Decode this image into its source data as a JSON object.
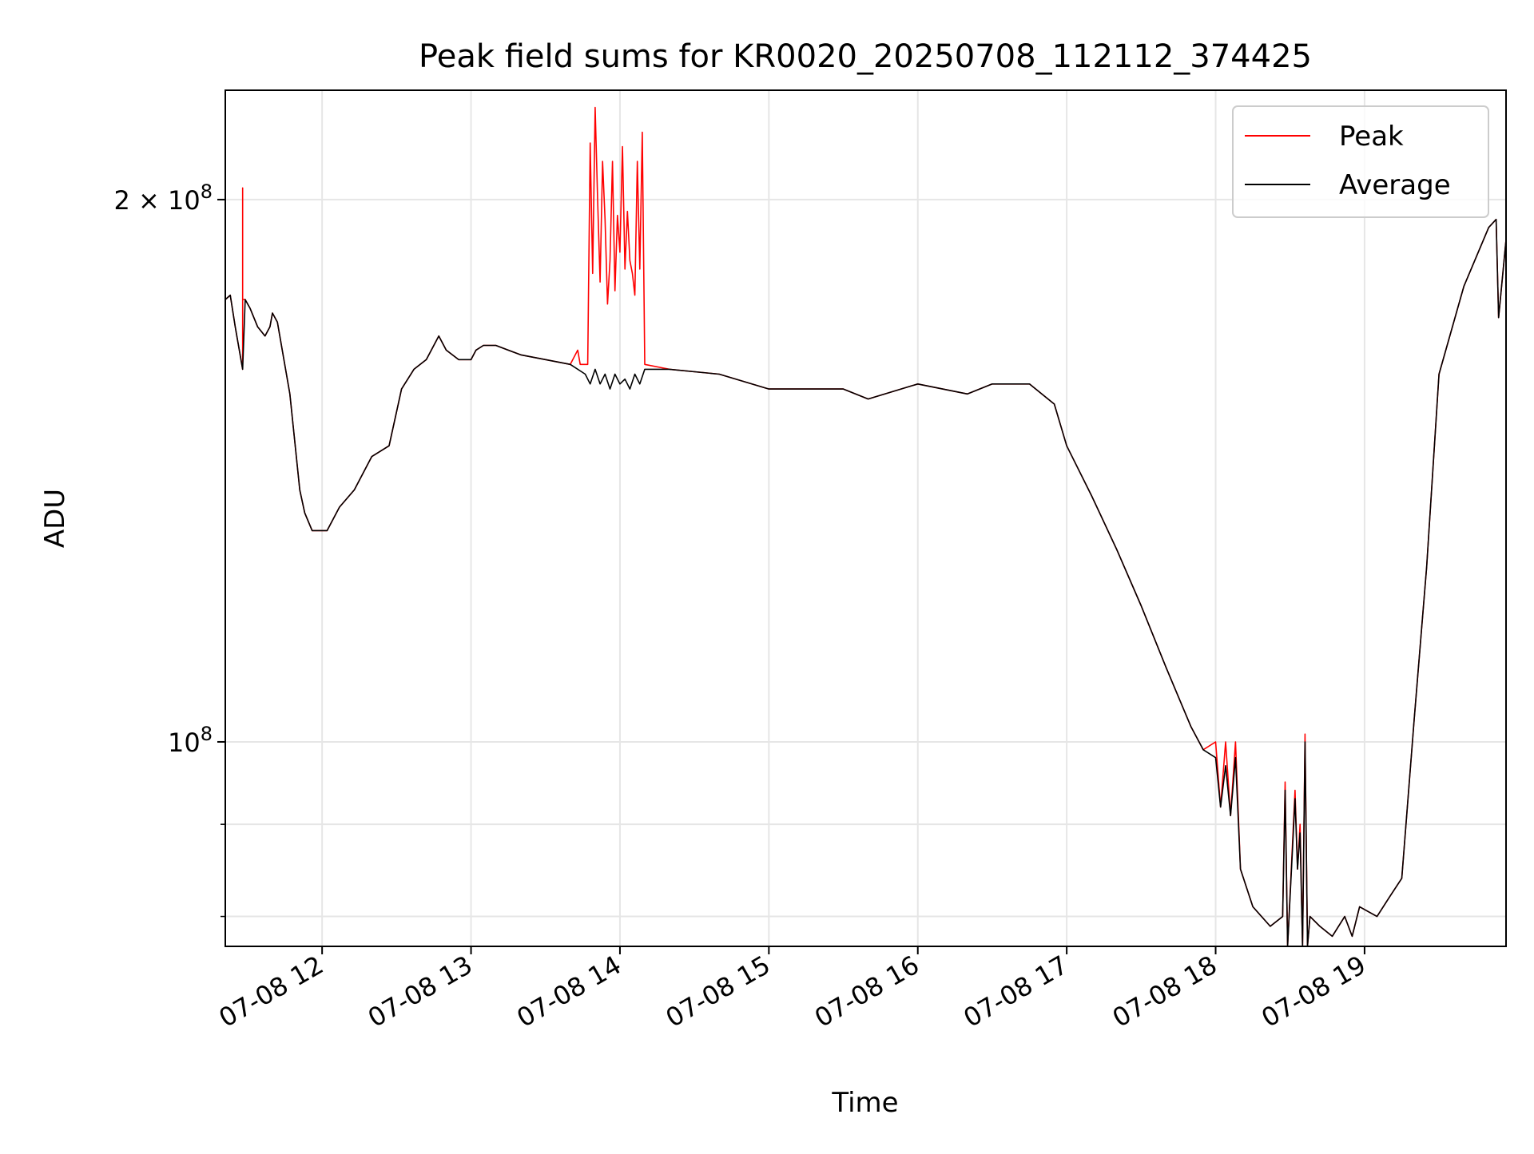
{
  "chart_data": {
    "type": "line",
    "title": "Peak field sums for KR0020_20250708_112112_374425",
    "xlabel": "Time",
    "ylabel": "ADU",
    "x_is_time": true,
    "xlim": [
      "2025-07-08 11:21",
      "2025-07-08 19:57"
    ],
    "ylim": [
      77000000,
      230000000
    ],
    "y_scale": "log",
    "grid": true,
    "legend_position": "top-right",
    "x_ticks": [
      {
        "value": "2025-07-08 12:00",
        "label": "07-08 12"
      },
      {
        "value": "2025-07-08 13:00",
        "label": "07-08 13"
      },
      {
        "value": "2025-07-08 14:00",
        "label": "07-08 14"
      },
      {
        "value": "2025-07-08 15:00",
        "label": "07-08 15"
      },
      {
        "value": "2025-07-08 16:00",
        "label": "07-08 16"
      },
      {
        "value": "2025-07-08 17:00",
        "label": "07-08 17"
      },
      {
        "value": "2025-07-08 18:00",
        "label": "07-08 18"
      },
      {
        "value": "2025-07-08 19:00",
        "label": "07-08 19"
      }
    ],
    "y_ticks": [
      {
        "value": 200000000,
        "label": "2 × 10⁸",
        "mantissa": "2",
        "times": "×",
        "base": "10",
        "exp": "8"
      },
      {
        "value": 100000000,
        "label": "10⁸",
        "mantissa": "",
        "times": "",
        "base": "10",
        "exp": "8"
      }
    ],
    "y_minor_ticks": [
      90000000,
      80000000
    ],
    "series": [
      {
        "name": "Peak",
        "color": "#ff0000",
        "x": [
          "2025-07-08 11:21",
          "2025-07-08 11:23",
          "2025-07-08 11:25",
          "2025-07-08 11:28",
          "2025-07-08 11:28",
          "2025-07-08 11:28",
          "2025-07-08 11:29",
          "2025-07-08 11:31",
          "2025-07-08 11:34",
          "2025-07-08 11:37",
          "2025-07-08 11:39",
          "2025-07-08 11:40",
          "2025-07-08 11:42",
          "2025-07-08 11:47",
          "2025-07-08 11:51",
          "2025-07-08 11:53",
          "2025-07-08 11:56",
          "2025-07-08 11:59",
          "2025-07-08 12:02",
          "2025-07-08 12:07",
          "2025-07-08 12:13",
          "2025-07-08 12:20",
          "2025-07-08 12:27",
          "2025-07-08 12:32",
          "2025-07-08 12:37",
          "2025-07-08 12:42",
          "2025-07-08 12:47",
          "2025-07-08 12:50",
          "2025-07-08 12:55",
          "2025-07-08 13:00",
          "2025-07-08 13:02",
          "2025-07-08 13:05",
          "2025-07-08 13:10",
          "2025-07-08 13:20",
          "2025-07-08 13:30",
          "2025-07-08 13:40",
          "2025-07-08 13:43",
          "2025-07-08 13:44",
          "2025-07-08 13:47",
          "2025-07-08 13:48",
          "2025-07-08 13:49",
          "2025-07-08 13:50",
          "2025-07-08 13:51",
          "2025-07-08 13:52",
          "2025-07-08 13:53",
          "2025-07-08 13:54",
          "2025-07-08 13:55",
          "2025-07-08 13:56",
          "2025-07-08 13:57",
          "2025-07-08 13:58",
          "2025-07-08 13:59",
          "2025-07-08 14:00",
          "2025-07-08 14:01",
          "2025-07-08 14:02",
          "2025-07-08 14:03",
          "2025-07-08 14:04",
          "2025-07-08 14:05",
          "2025-07-08 14:06",
          "2025-07-08 14:07",
          "2025-07-08 14:08",
          "2025-07-08 14:09",
          "2025-07-08 14:10",
          "2025-07-08 14:20",
          "2025-07-08 14:40",
          "2025-07-08 15:00",
          "2025-07-08 15:30",
          "2025-07-08 15:40",
          "2025-07-08 16:00",
          "2025-07-08 16:20",
          "2025-07-08 16:30",
          "2025-07-08 16:45",
          "2025-07-08 16:55",
          "2025-07-08 17:00",
          "2025-07-08 17:10",
          "2025-07-08 17:20",
          "2025-07-08 17:30",
          "2025-07-08 17:40",
          "2025-07-08 17:50",
          "2025-07-08 17:55",
          "2025-07-08 18:00",
          "2025-07-08 18:02",
          "2025-07-08 18:04",
          "2025-07-08 18:06",
          "2025-07-08 18:08",
          "2025-07-08 18:10",
          "2025-07-08 18:15",
          "2025-07-08 18:22",
          "2025-07-08 18:27",
          "2025-07-08 18:28",
          "2025-07-08 18:29",
          "2025-07-08 18:32",
          "2025-07-08 18:33",
          "2025-07-08 18:34",
          "2025-07-08 18:35",
          "2025-07-08 18:36",
          "2025-07-08 18:37",
          "2025-07-08 18:38",
          "2025-07-08 18:42",
          "2025-07-08 18:47",
          "2025-07-08 18:52",
          "2025-07-08 18:55",
          "2025-07-08 18:58",
          "2025-07-08 19:05",
          "2025-07-08 19:10",
          "2025-07-08 19:15",
          "2025-07-08 19:20",
          "2025-07-08 19:25",
          "2025-07-08 19:30",
          "2025-07-08 19:40",
          "2025-07-08 19:50",
          "2025-07-08 19:53",
          "2025-07-08 19:54",
          "2025-07-08 19:57"
        ],
        "values": [
          176000000,
          177000000,
          170000000,
          161000000,
          203000000,
          176000000,
          176000000,
          174000000,
          170000000,
          168000000,
          170000000,
          173000000,
          171000000,
          156000000,
          138000000,
          134000000,
          131000000,
          131000000,
          131000000,
          135000000,
          138000000,
          144000000,
          146000000,
          157000000,
          161000000,
          163000000,
          168000000,
          165000000,
          163000000,
          163000000,
          165000000,
          166000000,
          166000000,
          164000000,
          163000000,
          162000000,
          165000000,
          162000000,
          162000000,
          215000000,
          182000000,
          225000000,
          200000000,
          180000000,
          210000000,
          195000000,
          175000000,
          185000000,
          210000000,
          178000000,
          196000000,
          187000000,
          214000000,
          183000000,
          197000000,
          185000000,
          182000000,
          177000000,
          210000000,
          183000000,
          218000000,
          162000000,
          161000000,
          160000000,
          157000000,
          157000000,
          155000000,
          158000000,
          156000000,
          158000000,
          158000000,
          154000000,
          146000000,
          137000000,
          128000000,
          119000000,
          110000000,
          102000000,
          99000000,
          100000000,
          92000000,
          100000000,
          91000000,
          100000000,
          85000000,
          81000000,
          79000000,
          80000000,
          95000000,
          77000000,
          94000000,
          85000000,
          90000000,
          77000000,
          101000000,
          77000000,
          80000000,
          79000000,
          78000000,
          80000000,
          78000000,
          81000000,
          80000000,
          82000000,
          84000000,
          103000000,
          125000000,
          160000000,
          179000000,
          193000000,
          195000000,
          172000000,
          190000000
        ]
      },
      {
        "name": "Average",
        "color": "#000000",
        "x": [
          "2025-07-08 11:21",
          "2025-07-08 11:23",
          "2025-07-08 11:25",
          "2025-07-08 11:28",
          "2025-07-08 11:29",
          "2025-07-08 11:31",
          "2025-07-08 11:34",
          "2025-07-08 11:37",
          "2025-07-08 11:39",
          "2025-07-08 11:40",
          "2025-07-08 11:42",
          "2025-07-08 11:47",
          "2025-07-08 11:51",
          "2025-07-08 11:53",
          "2025-07-08 11:56",
          "2025-07-08 11:59",
          "2025-07-08 12:02",
          "2025-07-08 12:07",
          "2025-07-08 12:13",
          "2025-07-08 12:20",
          "2025-07-08 12:27",
          "2025-07-08 12:32",
          "2025-07-08 12:37",
          "2025-07-08 12:42",
          "2025-07-08 12:47",
          "2025-07-08 12:50",
          "2025-07-08 12:55",
          "2025-07-08 13:00",
          "2025-07-08 13:02",
          "2025-07-08 13:05",
          "2025-07-08 13:10",
          "2025-07-08 13:20",
          "2025-07-08 13:30",
          "2025-07-08 13:40",
          "2025-07-08 13:46",
          "2025-07-08 13:48",
          "2025-07-08 13:50",
          "2025-07-08 13:52",
          "2025-07-08 13:54",
          "2025-07-08 13:56",
          "2025-07-08 13:58",
          "2025-07-08 14:00",
          "2025-07-08 14:02",
          "2025-07-08 14:04",
          "2025-07-08 14:06",
          "2025-07-08 14:08",
          "2025-07-08 14:10",
          "2025-07-08 14:20",
          "2025-07-08 14:40",
          "2025-07-08 15:00",
          "2025-07-08 15:30",
          "2025-07-08 15:40",
          "2025-07-08 16:00",
          "2025-07-08 16:20",
          "2025-07-08 16:30",
          "2025-07-08 16:45",
          "2025-07-08 16:55",
          "2025-07-08 17:00",
          "2025-07-08 17:10",
          "2025-07-08 17:20",
          "2025-07-08 17:30",
          "2025-07-08 17:40",
          "2025-07-08 17:50",
          "2025-07-08 17:55",
          "2025-07-08 18:00",
          "2025-07-08 18:02",
          "2025-07-08 18:04",
          "2025-07-08 18:06",
          "2025-07-08 18:08",
          "2025-07-08 18:10",
          "2025-07-08 18:15",
          "2025-07-08 18:22",
          "2025-07-08 18:27",
          "2025-07-08 18:28",
          "2025-07-08 18:29",
          "2025-07-08 18:32",
          "2025-07-08 18:33",
          "2025-07-08 18:34",
          "2025-07-08 18:35",
          "2025-07-08 18:36",
          "2025-07-08 18:37",
          "2025-07-08 18:38",
          "2025-07-08 18:42",
          "2025-07-08 18:47",
          "2025-07-08 18:52",
          "2025-07-08 18:55",
          "2025-07-08 18:58",
          "2025-07-08 19:05",
          "2025-07-08 19:10",
          "2025-07-08 19:15",
          "2025-07-08 19:20",
          "2025-07-08 19:25",
          "2025-07-08 19:30",
          "2025-07-08 19:40",
          "2025-07-08 19:50",
          "2025-07-08 19:53",
          "2025-07-08 19:54",
          "2025-07-08 19:57"
        ],
        "values": [
          176000000,
          177000000,
          170000000,
          161000000,
          176000000,
          174000000,
          170000000,
          168000000,
          170000000,
          173000000,
          171000000,
          156000000,
          138000000,
          134000000,
          131000000,
          131000000,
          131000000,
          135000000,
          138000000,
          144000000,
          146000000,
          157000000,
          161000000,
          163000000,
          168000000,
          165000000,
          163000000,
          163000000,
          165000000,
          166000000,
          166000000,
          164000000,
          163000000,
          162000000,
          160000000,
          158000000,
          161000000,
          158000000,
          160000000,
          157000000,
          160000000,
          158000000,
          159000000,
          157000000,
          160000000,
          158000000,
          161000000,
          161000000,
          160000000,
          157000000,
          157000000,
          155000000,
          158000000,
          156000000,
          158000000,
          158000000,
          154000000,
          146000000,
          137000000,
          128000000,
          119000000,
          110000000,
          102000000,
          99000000,
          98000000,
          92000000,
          97000000,
          91000000,
          98000000,
          85000000,
          81000000,
          79000000,
          80000000,
          94000000,
          77000000,
          93000000,
          85000000,
          89000000,
          77000000,
          100000000,
          77000000,
          80000000,
          79000000,
          78000000,
          80000000,
          78000000,
          81000000,
          80000000,
          82000000,
          84000000,
          103000000,
          125000000,
          160000000,
          179000000,
          193000000,
          195000000,
          172000000,
          190000000
        ]
      }
    ]
  }
}
